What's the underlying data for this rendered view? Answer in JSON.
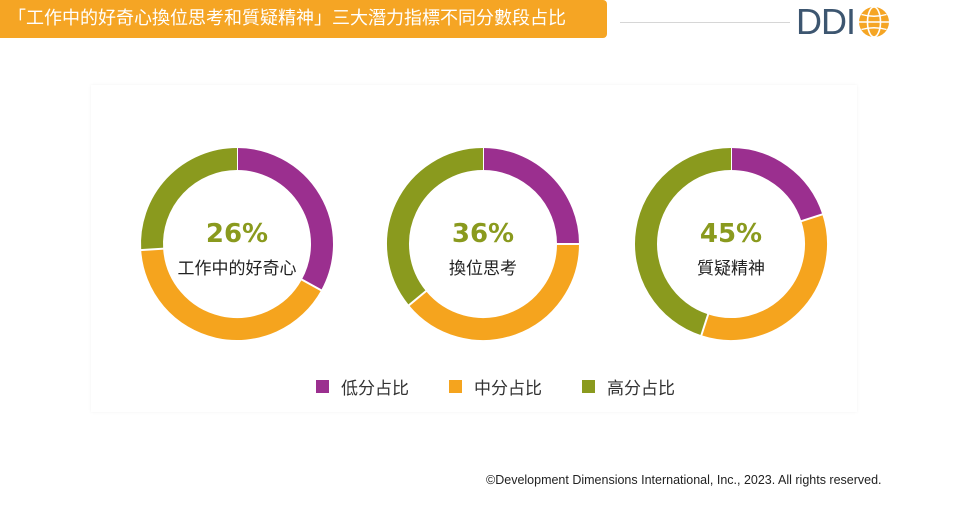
{
  "header": {
    "title": "「工作中的好奇心換位思考和質疑精神」三大潛力指標不同分數段占比",
    "logo_text": "DDI"
  },
  "colors": {
    "banner": "#F5A524",
    "low": "#9B2F8F",
    "mid": "#F5A41E",
    "high": "#8A9A1E",
    "percent_text": "#8A9A1E",
    "logo": "#3D5670"
  },
  "chart_data": {
    "type": "pie",
    "style": "donut",
    "series_names": [
      "低分占比",
      "中分占比",
      "高分占比"
    ],
    "charts": [
      {
        "label": "工作中的好奇心",
        "highlight_percent": "26%",
        "segments": [
          {
            "name": "低分占比",
            "value": 33
          },
          {
            "name": "中分占比",
            "value": 41
          },
          {
            "name": "高分占比",
            "value": 26
          }
        ]
      },
      {
        "label": "換位思考",
        "highlight_percent": "36%",
        "segments": [
          {
            "name": "低分占比",
            "value": 25
          },
          {
            "name": "中分占比",
            "value": 39
          },
          {
            "name": "高分占比",
            "value": 36
          }
        ]
      },
      {
        "label": "質疑精神",
        "highlight_percent": "45%",
        "segments": [
          {
            "name": "低分占比",
            "value": 20
          },
          {
            "name": "中分占比",
            "value": 35
          },
          {
            "name": "高分占比",
            "value": 45
          }
        ]
      }
    ],
    "legend_position": "bottom"
  },
  "legend": {
    "low_label": "低分占比",
    "mid_label": "中分占比",
    "high_label": "高分占比"
  },
  "footer": {
    "copyright": "©Development Dimensions International, Inc., 2023. All rights reserved."
  }
}
